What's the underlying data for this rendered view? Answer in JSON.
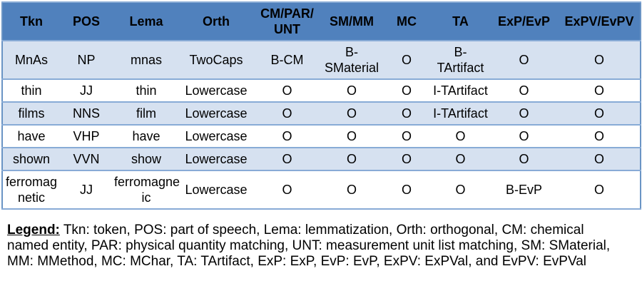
{
  "colors": {
    "header_bg": "#5081BD",
    "band_bg": "#D6E1F0",
    "border": "#6A94C4",
    "row_line": "#88ABD6",
    "text": "#000000"
  },
  "table": {
    "columns": [
      "Tkn",
      "POS",
      "Lema",
      "Orth",
      "CM/PAR/\nUNT",
      "SM/MM",
      "MC",
      "TA",
      "ExP/EvP",
      "ExPV/EvPV"
    ],
    "rows": [
      {
        "shaded": true,
        "cells": [
          "MnAs",
          "NP",
          "mnas",
          "TwoCaps",
          "B-CM",
          "B-\nSMaterial",
          "O",
          "B-\nTArtifact",
          "O",
          "O"
        ]
      },
      {
        "shaded": false,
        "cells": [
          "thin",
          "JJ",
          "thin",
          "Lowercase",
          "O",
          "O",
          "O",
          "I-TArtifact",
          "O",
          "O"
        ]
      },
      {
        "shaded": true,
        "cells": [
          "films",
          "NNS",
          "film",
          "Lowercase",
          "O",
          "O",
          "O",
          "I-TArtifact",
          "O",
          "O"
        ]
      },
      {
        "shaded": false,
        "cells": [
          "have",
          "VHP",
          "have",
          "Lowercase",
          "O",
          "O",
          "O",
          "O",
          "O",
          "O"
        ]
      },
      {
        "shaded": true,
        "cells": [
          "shown",
          "VVN",
          "show",
          "Lowercase",
          "O",
          "O",
          "O",
          "O",
          "O",
          "O"
        ]
      },
      {
        "shaded": false,
        "cells": [
          "ferromag\nnetic",
          "JJ",
          "ferromagnet\nic",
          "Lowercase",
          "O",
          "O",
          "O",
          "O",
          "B-EvP",
          "O"
        ]
      }
    ]
  },
  "legend": {
    "title": "Legend:",
    "text": " Tkn: token, POS: part of speech, Lema: lemmatization, Orth: orthogonal, CM: chemical named entity, PAR: physical quantity matching, UNT: measurement unit list matching, SM: SMaterial, MM: MMethod, MC: MChar, TA: TArtifact, ExP: ExP, EvP: EvP, ExPV: ExPVal, and EvPV: EvPVal"
  }
}
